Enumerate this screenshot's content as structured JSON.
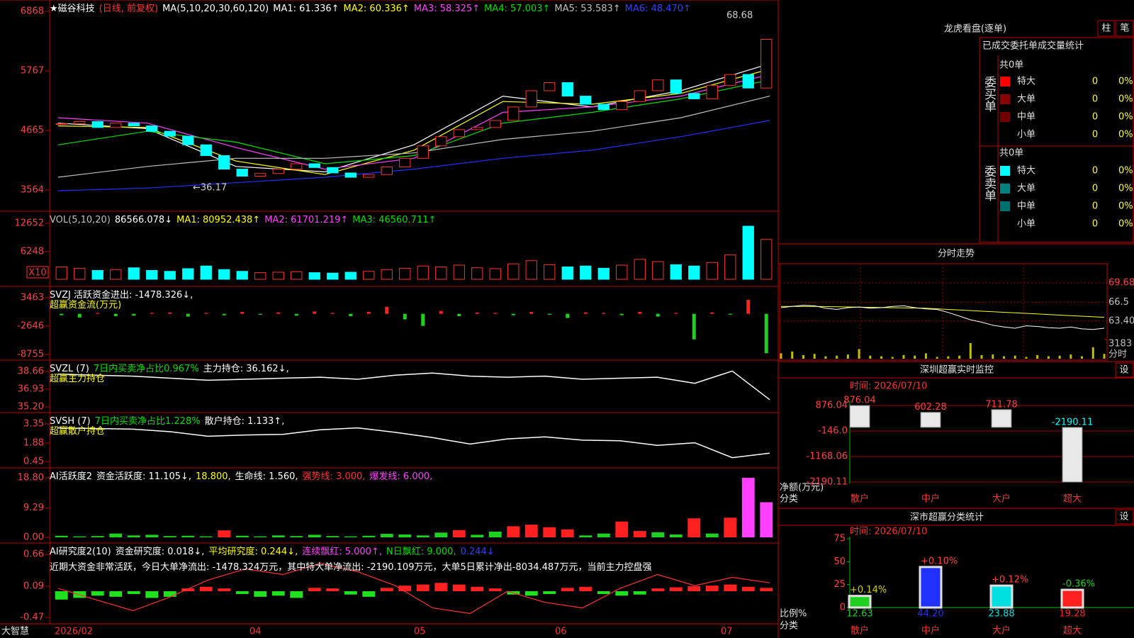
{
  "main": {
    "price": {
      "type": "candlestick",
      "header": [
        [
          {
            "text": "★磁谷科技",
            "color": "#ffffff"
          },
          {
            "text": "(日线, 前复权)",
            "color": "#ff3030"
          },
          {
            "text": "MA(5,10,20,30,60,120)",
            "color": "#ffffff"
          },
          {
            "text": "MA1: 61.336↑",
            "color": "#ffffff"
          },
          {
            "text": "MA2: 60.336↑",
            "color": "#ffff00"
          },
          {
            "text": "MA3: 58.325↑",
            "color": "#ff40ff"
          },
          {
            "text": "MA4: 57.003↑",
            "color": "#00e000"
          },
          {
            "text": "MA5: 53.583↑",
            "color": "#c0c0c0"
          },
          {
            "text": "MA6: 48.470↑",
            "color": "#3040ff"
          }
        ]
      ],
      "ylim": [
        3250,
        7025
      ],
      "yticks": [
        6868,
        5767,
        4665,
        3564
      ],
      "closes": [
        4790,
        4830,
        4720,
        4800,
        4750,
        4650,
        4560,
        4400,
        4200,
        3950,
        3820,
        3870,
        3950,
        4050,
        3980,
        3880,
        3800,
        3850,
        3990,
        4150,
        4380,
        4550,
        4680,
        4720,
        4850,
        5100,
        5400,
        5550,
        5300,
        5150,
        5050,
        5200,
        5400,
        5600,
        5350,
        5250,
        5500,
        5700,
        5450,
        6350
      ],
      "ma_lines": [
        {
          "color": "#ffffff",
          "values": [
            4800,
            4700,
            4000,
            3900,
            4400,
            5300,
            5100,
            5400,
            5900
          ]
        },
        {
          "color": "#ffff00",
          "values": [
            4750,
            4720,
            4100,
            3850,
            4300,
            5200,
            5150,
            5350,
            5800
          ]
        },
        {
          "color": "#ff40ff",
          "values": [
            4900,
            4800,
            4350,
            3950,
            4150,
            5000,
            5100,
            5300,
            5700
          ]
        },
        {
          "color": "#00e000",
          "values": [
            4400,
            4650,
            4450,
            4050,
            4200,
            4800,
            5000,
            5250,
            5600
          ]
        },
        {
          "color": "#c0c0c0",
          "values": [
            3800,
            4000,
            4150,
            4150,
            4250,
            4500,
            4650,
            4900,
            5300
          ]
        },
        {
          "color": "#2030ff",
          "values": [
            3550,
            3600,
            3700,
            3800,
            3950,
            4150,
            4300,
            4550,
            4850
          ]
        }
      ],
      "annotations": [
        "68.68",
        "←36.17"
      ]
    },
    "volume": {
      "type": "volume",
      "header": [
        [
          {
            "text": "VOL(5,10,20)",
            "color": "#c0c0c0"
          },
          {
            "text": "86566.078↓",
            "color": "#ffffff"
          },
          {
            "text": "MA1: 80952.438↑",
            "color": "#ffff00"
          },
          {
            "text": "MA2: 61701.219↑",
            "color": "#ff40ff"
          },
          {
            "text": "MA3: 46560.711↑",
            "color": "#00e000"
          }
        ]
      ],
      "ylim": [
        0,
        15050
      ],
      "yticks": [
        12652,
        6248
      ],
      "unit_label": "X10",
      "values": [
        2800,
        2500,
        2000,
        2200,
        2600,
        2000,
        1800,
        2400,
        3000,
        2200,
        1800,
        1500,
        1600,
        1700,
        1500,
        1400,
        1600,
        1800,
        2200,
        2500,
        3000,
        2800,
        3200,
        2600,
        2400,
        3500,
        4200,
        3300,
        2800,
        3000,
        2500,
        3200,
        4500,
        4000,
        3300,
        3000,
        3800,
        5500,
        12000,
        9000
      ]
    },
    "svzj": {
      "type": "signed_bar",
      "header": [
        [
          {
            "text": "SVZJ  活跃资金进出: -1478.326↓,",
            "color": "#ffffff"
          }
        ],
        [
          {
            "text": "超赢资金流(万元)",
            "color": "#ffff00"
          }
        ]
      ],
      "ylim": [
        -9670,
        5600
      ],
      "yticks": [
        3463,
        -2646,
        -8755
      ],
      "values": [
        -300,
        -800,
        200,
        -500,
        -400,
        200,
        300,
        -600,
        200,
        -300,
        400,
        -200,
        300,
        -400,
        500,
        200,
        -500,
        400,
        1500,
        -1200,
        -2600,
        600,
        -500,
        300,
        200,
        -300,
        400,
        -200,
        -900,
        300,
        200,
        -300,
        400,
        -600,
        200,
        -5500,
        300,
        -200,
        3000,
        -8500
      ]
    },
    "svzl": {
      "type": "line",
      "line_color": "#ffffff",
      "header": [
        [
          {
            "text": "SVZL (7)",
            "color": "#ffffff"
          },
          {
            "text": "7日内买卖净占比0.967%",
            "color": "#00e000"
          },
          {
            "text": "主力持仓: 36.162↓,",
            "color": "#ffffff"
          }
        ],
        [
          {
            "text": "超赢主力持仓",
            "color": "#ffff00"
          }
        ]
      ],
      "ylim": [
        34.78,
        39.63
      ],
      "yticks": [
        38.66,
        36.93,
        {
          "value": 35.2,
          "label": "35.20"
        }
      ],
      "values": [
        38.4,
        38.3,
        38.2,
        38.0,
        37.8,
        37.9,
        38.0,
        38.1,
        37.9,
        38.3,
        38.5,
        38.2,
        38.1,
        38.2,
        37.9,
        38.0,
        38.1,
        37.5,
        38.7,
        35.9
      ]
    },
    "svsh": {
      "type": "line",
      "line_color": "#ffffff",
      "header": [
        [
          {
            "text": "SVSH (7)",
            "color": "#ffffff"
          },
          {
            "text": "7日内买卖净占比1.228%",
            "color": "#00e000"
          },
          {
            "text": "散户持仓: 1.133↑,",
            "color": "#ffffff"
          }
        ],
        [
          {
            "text": "超赢散户持仓",
            "color": "#ffff00"
          }
        ]
      ],
      "ylim": [
        0.07,
        4.12
      ],
      "yticks": [
        3.35,
        1.88,
        0.45
      ],
      "values": [
        3.05,
        3.0,
        2.95,
        2.75,
        2.4,
        2.5,
        2.55,
        2.9,
        3.05,
        2.7,
        2.3,
        1.8,
        2.2,
        2.35,
        2.1,
        2.05,
        1.7,
        1.9,
        0.75,
        1.1
      ]
    },
    "ai_active": {
      "type": "activity_bar",
      "header": [
        [
          {
            "text": "AI活跃度2",
            "color": "#ffffff"
          },
          {
            "text": "资金活跃度: 11.105↓,",
            "color": "#ffffff"
          },
          {
            "text": "18.800,",
            "color": "#ffff00"
          },
          {
            "text": "生命线: 1.560,",
            "color": "#ffffff"
          },
          {
            "text": "强势线: 3.000,",
            "color": "#ff3030"
          },
          {
            "text": "爆发线: 6.000,",
            "color": "#ff40ff"
          }
        ]
      ],
      "ylim": [
        0,
        21.5
      ],
      "yticks": [
        {
          "value": 18.8,
          "label": "18.80"
        },
        9.29,
        {
          "value": 0,
          "label": "0.00"
        }
      ],
      "values": [
        0.5,
        0.3,
        0.4,
        1.2,
        0.6,
        0.8,
        0.4,
        0.5,
        0.3,
        2.2,
        0.5,
        0.3,
        0.6,
        0.4,
        0.8,
        0.4,
        0.3,
        0.5,
        1.1,
        0.9,
        0.6,
        1.5,
        2.3,
        0.8,
        1.8,
        3.5,
        4.0,
        3.2,
        2.5,
        0.6,
        1.2,
        5.0,
        2.0,
        1.6,
        0.9,
        6.0,
        1.2,
        6.2,
        18.8,
        11.1
      ]
    },
    "ai_research": {
      "type": "bar_line",
      "line_color": "#ff3030",
      "header": [
        [
          {
            "text": "AI研究度2(10)",
            "color": "#ffffff"
          },
          {
            "text": "资金研究度: 0.018↓,",
            "color": "#ffffff"
          },
          {
            "text": "平均研究度: 0.244↓,",
            "color": "#ffff00"
          },
          {
            "text": "连续飘红: 5.000↑,",
            "color": "#ff40ff"
          },
          {
            "text": "N日飘红: 9.000,",
            "color": "#00e000"
          },
          {
            "text": "0.244↓",
            "color": "#3040ff"
          }
        ],
        [
          {
            "text": "近期大资金非常活跃，今日大单净流出: -1478.324万元，其中特大单净流出: -2190.109万元，大单5日累计净出-8034.487万元，当前主力控盘强",
            "color": "#ffffff"
          }
        ]
      ],
      "ylim": [
        -0.56,
        0.84
      ],
      "yticks": [
        0.66,
        0.09,
        -0.47
      ],
      "values": [
        -0.15,
        -0.12,
        -0.08,
        -0.1,
        -0.05,
        -0.12,
        -0.1,
        0.05,
        0.08,
        0.05,
        -0.05,
        -0.1,
        -0.08,
        -0.12,
        0.06,
        0.05,
        -0.06,
        -0.1,
        0.06,
        0.1,
        0.12,
        0.15,
        0.12,
        0.08,
        0.05,
        -0.06,
        -0.08,
        -0.05,
        0.06,
        0.08,
        -0.05,
        -0.08,
        -0.06,
        0.05,
        0.07,
        0.09,
        0.1,
        0.12,
        0.08,
        0.06
      ],
      "line": [
        0.05,
        -0.15,
        -0.35,
        -0.1,
        0.2,
        0.4,
        0.3,
        0.5,
        0.35,
        0.1,
        -0.3,
        -0.4,
        0.0,
        -0.2,
        -0.3,
        0.05,
        0.3,
        0.1,
        0.25,
        0.15
      ]
    }
  },
  "x_labels": [
    "2026/02",
    "04",
    "05",
    "06",
    "07"
  ],
  "brand": "大智慧",
  "order_book": {
    "title": "龙虎看盘(逐单)",
    "buttons": [
      "柱",
      "笔"
    ],
    "subtitle": "已成交委托单成交量统计",
    "buy": {
      "label": "委买单",
      "total": "共0单",
      "rows": [
        {
          "name": "特大",
          "count": 0,
          "pct": "0%",
          "color": "#ff0000"
        },
        {
          "name": "大单",
          "count": 0,
          "pct": "0%",
          "color": "#8b0000"
        },
        {
          "name": "中单",
          "count": 0,
          "pct": "0%",
          "color": "#700000"
        },
        {
          "name": "小单",
          "count": 0,
          "pct": "0%"
        }
      ]
    },
    "sell": {
      "label": "委卖单",
      "total": "共0单",
      "rows": [
        {
          "name": "特大",
          "count": 0,
          "pct": "0%",
          "color": "#00ffff"
        },
        {
          "name": "大单",
          "count": 0,
          "pct": "0%",
          "color": "#008080"
        },
        {
          "name": "中单",
          "count": 0,
          "pct": "0%",
          "color": "#007070"
        },
        {
          "name": "小单",
          "count": 0,
          "pct": "0%"
        }
      ]
    }
  },
  "intraday": {
    "title": "分时走势",
    "ylim": [
      60.8,
      72.5
    ],
    "yticks": [
      69.68,
      66.5,
      {
        "value": 63.4,
        "label": "63.40"
      }
    ],
    "price": [
      65.6,
      65.8,
      66.0,
      65.9,
      65.5,
      65.3,
      65.6,
      65.7,
      65.5,
      65.6,
      65.8,
      65.9,
      65.6,
      65.4,
      65.3,
      64.8,
      64.2,
      63.6,
      63.2,
      62.7,
      62.4,
      62.2,
      62.6,
      62.5,
      62.3,
      62.2,
      62.4,
      62.1,
      62.0,
      62.2
    ],
    "avg": [
      65.8,
      65.8,
      65.7,
      65.6,
      65.5,
      65.2,
      64.9,
      64.6,
      64.3,
      64.0
    ],
    "vol_ylim": [
      0,
      3300
    ],
    "vol_tick": 3183,
    "vol_label": "分时",
    "volume": [
      900,
      1200,
      600,
      800,
      400,
      500,
      700,
      1600,
      500,
      400,
      300,
      600,
      500,
      900,
      300,
      400,
      500,
      2600,
      600,
      700,
      400,
      500,
      300,
      600,
      400,
      500,
      700,
      400,
      1900,
      800
    ]
  },
  "monitor": {
    "title": "深圳超赢实时监控",
    "button": "设",
    "time": "时间: 2026/07/10",
    "ylabel": "净额(万元)",
    "xlabel": "分类",
    "ylim": [
      -2190.11,
      876.04
    ],
    "yticks": [
      876.04,
      {
        "value": -146.0,
        "label": "-146.0"
      },
      -1168.06,
      -2190.11
    ],
    "categories": [
      "散户",
      "中户",
      "大户",
      "超大"
    ],
    "values": [
      876.04,
      602.28,
      711.78,
      -2190.11
    ]
  },
  "stats": {
    "title": "深市超赢分类统计",
    "button": "设",
    "time": "时间: 2026/07/10",
    "ylabel": "比例%",
    "xlabel": "分类",
    "ylim": [
      0,
      75
    ],
    "yticks": [
      75,
      50,
      25,
      0
    ],
    "categories": [
      "散户",
      "中户",
      "大户",
      "超大"
    ],
    "values": [
      12.63,
      44.2,
      23.88,
      19.28
    ],
    "value_labels": [
      "12.63",
      "44.20",
      "23.88",
      "19.28"
    ],
    "changes": [
      "+0.14%",
      "+0.10%",
      "+0.12%",
      "-0.36%"
    ],
    "colors": [
      "#20d020",
      "#2030ff",
      "#00e0e0",
      "#ff2020"
    ]
  }
}
